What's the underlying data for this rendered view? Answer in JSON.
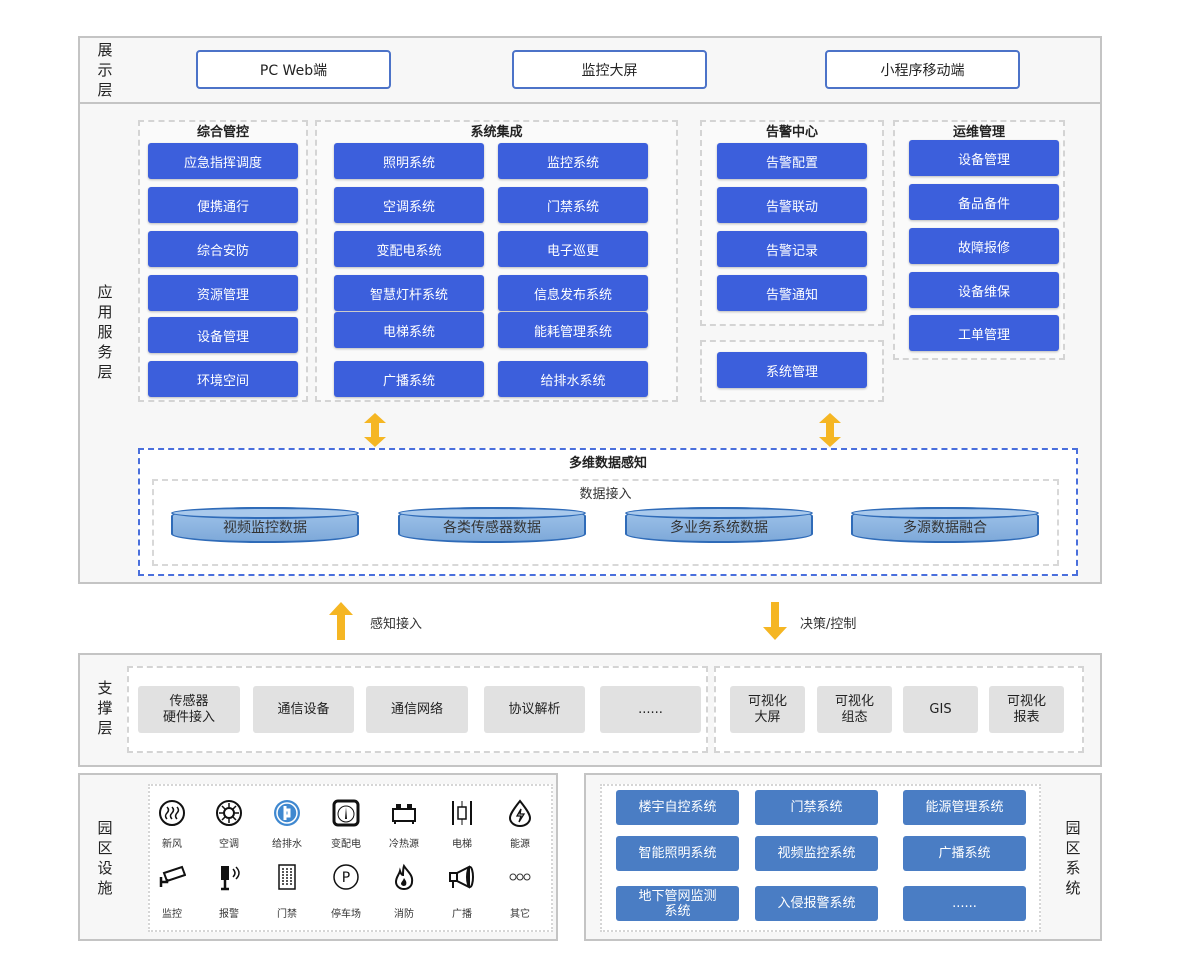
{
  "display_layer": {
    "label": "展示层",
    "items": [
      "PC Web端",
      "监控大屏",
      "小程序移动端"
    ]
  },
  "app_layer": {
    "label": "应用服务层",
    "integrated_control": {
      "title": "综合管控",
      "items": [
        "应急指挥调度",
        "便携通行",
        "综合安防",
        "资源管理",
        "设备管理",
        "环境空间"
      ]
    },
    "system_integration": {
      "title": "系统集成",
      "items": [
        "照明系统",
        "监控系统",
        "空调系统",
        "门禁系统",
        "变配电系统",
        "电子巡更",
        "智慧灯杆系统",
        "信息发布系统",
        "电梯系统",
        "能耗管理系统",
        "广播系统",
        "给排水系统"
      ]
    },
    "alarm_center": {
      "title": "告警中心",
      "items": [
        "告警配置",
        "告警联动",
        "告警记录",
        "告警通知"
      ]
    },
    "system_management": {
      "items": [
        "系统管理"
      ]
    },
    "ops_management": {
      "title": "运维管理",
      "items": [
        "设备管理",
        "备品备件",
        "故障报修",
        "设备维保",
        "工单管理"
      ]
    },
    "data_perception": {
      "title": "多维数据感知",
      "access_title": "数据接入",
      "items": [
        "视频监控数据",
        "各类传感器数据",
        "多业务系统数据",
        "多源数据融合"
      ]
    }
  },
  "flows": {
    "up_label": "感知接入",
    "down_label": "决策/控制",
    "arrow_color": "#f5b623"
  },
  "support_layer": {
    "label": "支撑层",
    "left_items": [
      "传感器\n硬件接入",
      "通信设备",
      "通信网络",
      "协议解析",
      "......"
    ],
    "right_items": [
      "可视化\n大屏",
      "可视化\n组态",
      "GIS",
      "可视化\n报表"
    ]
  },
  "park_facilities": {
    "label": "园区设施",
    "items": [
      {
        "label": "新风",
        "icon": "fresh-air-icon"
      },
      {
        "label": "空调",
        "icon": "air-conditioner-icon"
      },
      {
        "label": "给排水",
        "icon": "water-supply-icon"
      },
      {
        "label": "变配电",
        "icon": "power-meter-icon"
      },
      {
        "label": "冷热源",
        "icon": "heat-source-icon"
      },
      {
        "label": "电梯",
        "icon": "elevator-icon"
      },
      {
        "label": "能源",
        "icon": "energy-icon"
      },
      {
        "label": "监控",
        "icon": "camera-icon"
      },
      {
        "label": "报警",
        "icon": "alarm-icon"
      },
      {
        "label": "门禁",
        "icon": "access-gate-icon"
      },
      {
        "label": "停车场",
        "icon": "parking-icon"
      },
      {
        "label": "消防",
        "icon": "fire-icon"
      },
      {
        "label": "广播",
        "icon": "megaphone-icon"
      },
      {
        "label": "其它",
        "icon": "more-icon"
      }
    ]
  },
  "park_systems": {
    "label": "园区系统",
    "items": [
      "楼宇自控系统",
      "门禁系统",
      "能源管理系统",
      "智能照明系统",
      "视频监控系统",
      "广播系统",
      "地下管网监测\n系统",
      "入侵报警系统",
      "......"
    ]
  },
  "colors": {
    "primary_button": "#3c5fdc",
    "system_button": "#4a7dc4",
    "data_border": "#4a6fdc",
    "arrow": "#f5b623"
  }
}
